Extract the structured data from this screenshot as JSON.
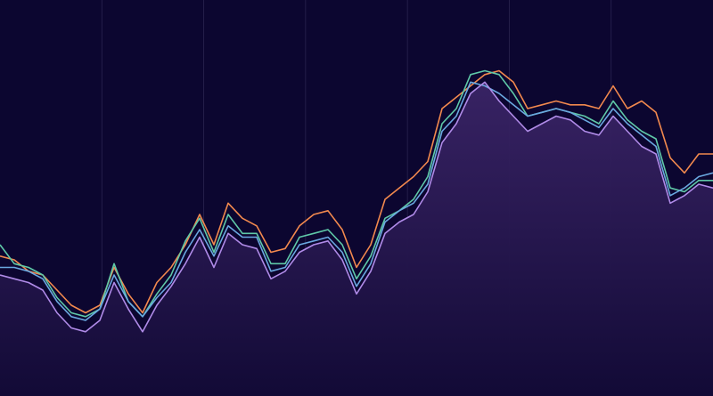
{
  "chart_data": {
    "type": "line",
    "title": "",
    "xlabel": "",
    "ylabel": "",
    "xlim": [
      0,
      100
    ],
    "ylim": [
      0,
      100
    ],
    "grid": {
      "vertical": true,
      "horizontal": false
    },
    "legend": "none",
    "colors": {
      "background": "#0c0630",
      "grid": "#2a2450",
      "area_top": "#3a2466",
      "area_bottom": "#120a36"
    },
    "x": [
      0,
      2,
      4,
      6,
      8,
      10,
      12,
      14,
      16,
      18,
      20,
      22,
      24,
      26,
      28,
      30,
      32,
      34,
      36,
      38,
      40,
      42,
      44,
      46,
      48,
      50,
      52,
      54,
      56,
      58,
      60,
      62,
      64,
      66,
      68,
      70,
      72,
      74,
      76,
      78,
      80,
      82,
      84,
      86,
      88,
      90,
      92,
      94,
      96,
      98,
      100
    ],
    "series": [
      {
        "color": "#f2894e",
        "area": false,
        "values": [
          37,
          36,
          33,
          32,
          28,
          24,
          22,
          24,
          34,
          27,
          22,
          30,
          34,
          40,
          48,
          40,
          51,
          47,
          45,
          38,
          39,
          45,
          48,
          49,
          44,
          34,
          40,
          52,
          55,
          58,
          62,
          76,
          79,
          82,
          85,
          86,
          83,
          76,
          77,
          78,
          77,
          77,
          76,
          82,
          76,
          78,
          75,
          63,
          59,
          64,
          64
        ]
      },
      {
        "color": "#5fc9a8",
        "area": false,
        "values": [
          40,
          35,
          34,
          32,
          26,
          22,
          21,
          23,
          35,
          25,
          21,
          27,
          32,
          41,
          47,
          38,
          48,
          43,
          43,
          35,
          35,
          42,
          43,
          44,
          40,
          31,
          37,
          47,
          49,
          52,
          58,
          72,
          76,
          85,
          86,
          85,
          80,
          74,
          75,
          76,
          75,
          74,
          72,
          78,
          73,
          70,
          68,
          55,
          54,
          57,
          57
        ]
      },
      {
        "color": "#6aa8e0",
        "area": false,
        "values": [
          34,
          34,
          33,
          31,
          25,
          21,
          20,
          23,
          32,
          25,
          21,
          26,
          30,
          38,
          44,
          37,
          45,
          42,
          42,
          33,
          34,
          40,
          41,
          42,
          38,
          29,
          35,
          46,
          49,
          51,
          56,
          70,
          74,
          83,
          82,
          80,
          77,
          74,
          75,
          76,
          75,
          73,
          71,
          76,
          72,
          69,
          66,
          53,
          55,
          58,
          59
        ]
      },
      {
        "color": "#b08be8",
        "area": true,
        "values": [
          32,
          31,
          30,
          28,
          22,
          18,
          17,
          20,
          30,
          23,
          17,
          24,
          29,
          35,
          42,
          34,
          43,
          40,
          39,
          31,
          33,
          38,
          40,
          41,
          36,
          27,
          33,
          43,
          46,
          48,
          54,
          67,
          72,
          80,
          83,
          78,
          74,
          70,
          72,
          74,
          73,
          70,
          69,
          74,
          70,
          66,
          64,
          51,
          53,
          56,
          55
        ]
      }
    ]
  }
}
